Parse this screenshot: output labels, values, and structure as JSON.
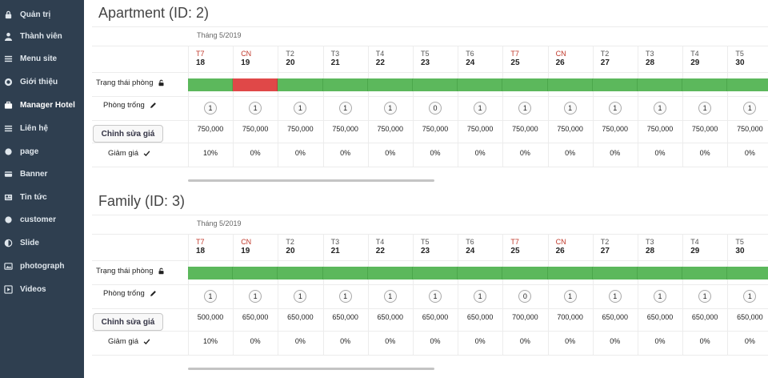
{
  "sidebar": {
    "items": [
      {
        "label": "Quản trị",
        "icon": "lock-icon"
      },
      {
        "label": "Thành viên",
        "icon": "user-icon"
      },
      {
        "label": "Menu site",
        "icon": "list-icon"
      },
      {
        "label": "Giới thiệu",
        "icon": "globe-icon"
      },
      {
        "label": "Manager Hotel",
        "icon": "briefcase-icon"
      },
      {
        "label": "Liên hệ",
        "icon": "list-icon"
      },
      {
        "label": "page",
        "icon": "circle-icon"
      },
      {
        "label": "Banner",
        "icon": "credit-card-icon"
      },
      {
        "label": "Tin tức",
        "icon": "newspaper-icon"
      },
      {
        "label": "customer",
        "icon": "circle-icon"
      },
      {
        "label": "Slide",
        "icon": "half-circle-icon"
      },
      {
        "label": "photograph",
        "icon": "image-icon"
      },
      {
        "label": "Videos",
        "icon": "play-icon"
      }
    ],
    "active_index": 4
  },
  "labels": {
    "status": "Trạng thái phòng",
    "vacant": "Phòng trống",
    "edit_price": "Chỉnh sửa giá",
    "discount": "Giảm giá"
  },
  "days": [
    {
      "wd": "T7",
      "d": "18",
      "weekend": true
    },
    {
      "wd": "CN",
      "d": "19",
      "weekend": true
    },
    {
      "wd": "T2",
      "d": "20",
      "weekend": false
    },
    {
      "wd": "T3",
      "d": "21",
      "weekend": false
    },
    {
      "wd": "T4",
      "d": "22",
      "weekend": false
    },
    {
      "wd": "T5",
      "d": "23",
      "weekend": false
    },
    {
      "wd": "T6",
      "d": "24",
      "weekend": false
    },
    {
      "wd": "T7",
      "d": "25",
      "weekend": true
    },
    {
      "wd": "CN",
      "d": "26",
      "weekend": true
    },
    {
      "wd": "T2",
      "d": "27",
      "weekend": false
    },
    {
      "wd": "T3",
      "d": "28",
      "weekend": false
    },
    {
      "wd": "T4",
      "d": "29",
      "weekend": false
    },
    {
      "wd": "T5",
      "d": "30",
      "weekend": false
    }
  ],
  "sections": [
    {
      "title": "Apartment (ID: 2)",
      "month": "Tháng 5/2019",
      "status": [
        "open",
        "booked",
        "open",
        "open",
        "open",
        "open",
        "open",
        "open",
        "open",
        "open",
        "open",
        "open",
        "open"
      ],
      "vacant": [
        "1",
        "1",
        "1",
        "1",
        "1",
        "0",
        "1",
        "1",
        "1",
        "1",
        "1",
        "1",
        "1"
      ],
      "prices": [
        "750,000",
        "750,000",
        "750,000",
        "750,000",
        "750,000",
        "750,000",
        "750,000",
        "750,000",
        "750,000",
        "750,000",
        "750,000",
        "750,000",
        "750,000"
      ],
      "discounts": [
        "10%",
        "0%",
        "0%",
        "0%",
        "0%",
        "0%",
        "0%",
        "0%",
        "0%",
        "0%",
        "0%",
        "0%",
        "0%"
      ]
    },
    {
      "title": "Family (ID: 3)",
      "month": "Tháng 5/2019",
      "status": [
        "open",
        "open",
        "open",
        "open",
        "open",
        "open",
        "open",
        "open",
        "open",
        "open",
        "open",
        "open",
        "open"
      ],
      "vacant": [
        "1",
        "1",
        "1",
        "1",
        "1",
        "1",
        "1",
        "0",
        "1",
        "1",
        "1",
        "1",
        "1"
      ],
      "prices": [
        "500,000",
        "650,000",
        "650,000",
        "650,000",
        "650,000",
        "650,000",
        "650,000",
        "700,000",
        "700,000",
        "650,000",
        "650,000",
        "650,000",
        "650,000"
      ],
      "discounts": [
        "10%",
        "0%",
        "0%",
        "0%",
        "0%",
        "0%",
        "0%",
        "0%",
        "0%",
        "0%",
        "0%",
        "0%",
        "0%"
      ]
    }
  ],
  "colors": {
    "open": "#5cb85c",
    "booked": "#e04848",
    "sidebar": "#2f3f50"
  }
}
